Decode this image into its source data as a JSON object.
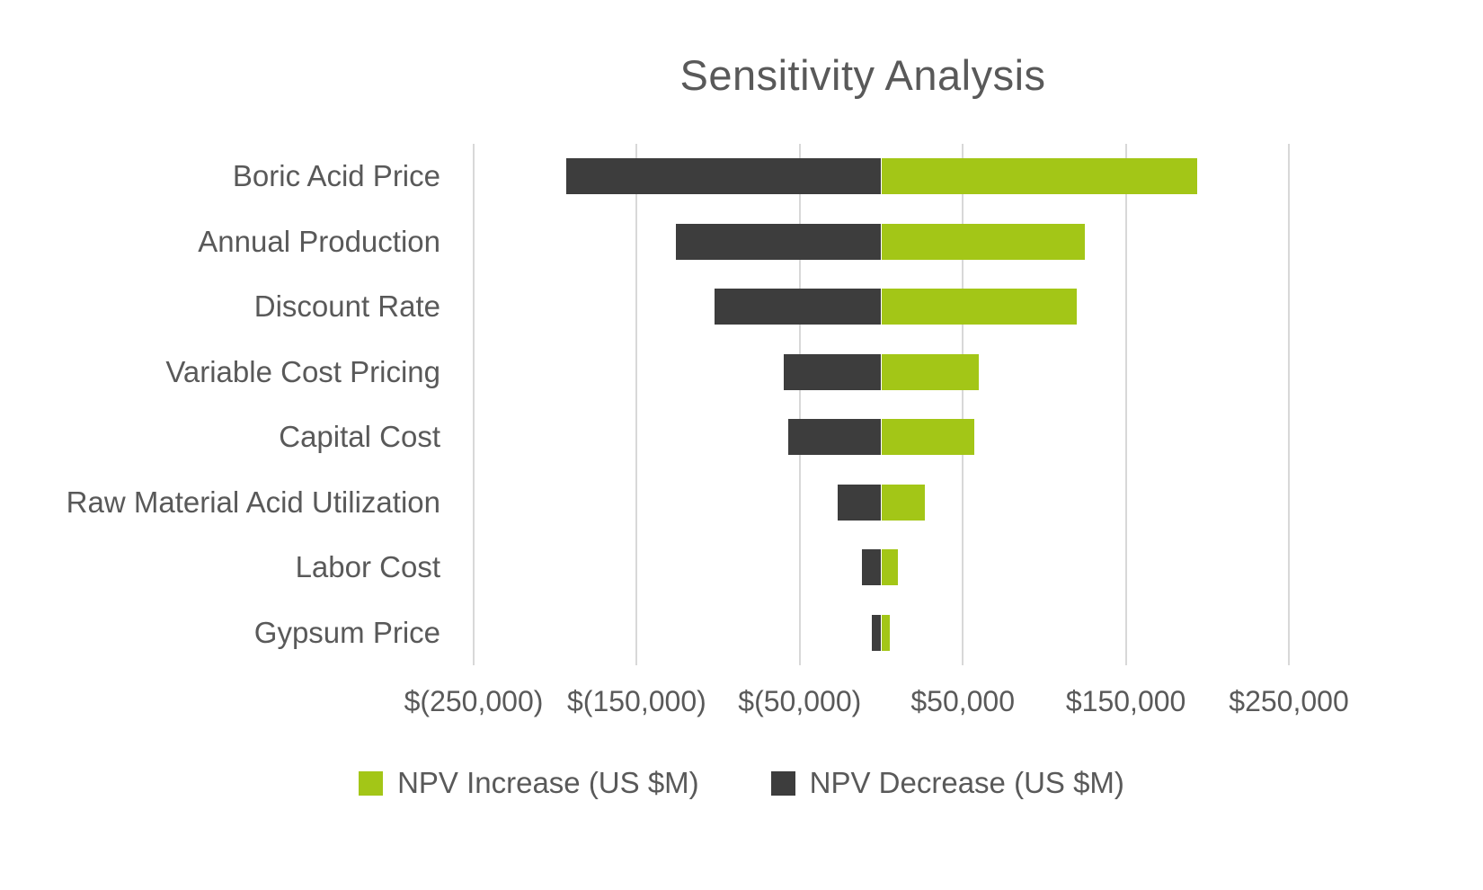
{
  "chart_data": {
    "type": "bar",
    "orientation": "horizontal",
    "title": "Sensitivity Analysis",
    "categories": [
      "Boric Acid Price",
      "Annual Production",
      "Discount Rate",
      "Variable Cost Pricing",
      "Capital Cost",
      "Raw Material Acid Utilization",
      "Labor Cost",
      "Gypsum Price"
    ],
    "series": [
      {
        "name": "NPV Increase (US $M)",
        "color": "#A3C617",
        "values": [
          194000,
          125000,
          120000,
          60000,
          57000,
          27000,
          10000,
          5000
        ]
      },
      {
        "name": "NPV Decrease (US $M)",
        "color": "#3D3D3D",
        "values": [
          -193000,
          -126000,
          -102000,
          -60000,
          -57000,
          -27000,
          -12000,
          -6000
        ]
      }
    ],
    "x_axis": {
      "min": -250000,
      "max": 250000,
      "tick_values": [
        -250000,
        -150000,
        -50000,
        50000,
        150000,
        250000
      ],
      "tick_labels": [
        "$(250,000)",
        "$(150,000)",
        "$(50,000)",
        "$50,000",
        "$150,000",
        "$250,000"
      ]
    },
    "legend": [
      {
        "label": "NPV Increase (US $M)",
        "color": "#A3C617"
      },
      {
        "label": "NPV Decrease (US $M)",
        "color": "#3D3D3D"
      }
    ],
    "grid": true,
    "legend_position": "bottom"
  },
  "colors": {
    "increase": "#A3C617",
    "decrease": "#3D3D3D",
    "text": "#595959",
    "gridline": "#D8D8D8",
    "background": "#FFFFFF"
  }
}
